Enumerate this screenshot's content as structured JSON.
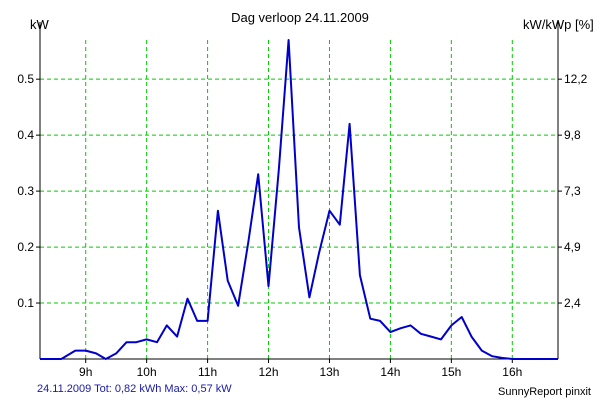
{
  "header": {
    "title": "Dag  verloop 24.11.2009",
    "ylabel_left": "kW",
    "ylabel_right": "kW/kWp [%]"
  },
  "footer": {
    "stats": "24.11.2009 Tot: 0,82 kWh Max: 0,57 kW",
    "credit": "SunnyReport pinxit"
  },
  "colors": {
    "line": "#0000cc",
    "grid": "#00cc00",
    "axis": "#000000",
    "stats_text": "#1a1aa8"
  },
  "chart_data": {
    "type": "line",
    "title": "Dag  verloop 24.11.2009",
    "ylabel": "kW",
    "y2label": "kW/kWp [%]",
    "xlim": [
      8.25,
      16.75
    ],
    "ylim": [
      0,
      0.57
    ],
    "x_ticks": [
      9,
      10,
      11,
      12,
      13,
      14,
      15,
      16
    ],
    "x_tick_labels": [
      "9h",
      "10h",
      "11h",
      "12h",
      "13h",
      "14h",
      "15h",
      "16h"
    ],
    "y_ticks": [
      0.1,
      0.2,
      0.3,
      0.4,
      0.5
    ],
    "y_tick_labels": [
      "0.1",
      "0.2",
      "0.3",
      "0.4",
      "0.5"
    ],
    "y2_ticks": [
      0.1,
      0.2,
      0.3,
      0.4,
      0.5
    ],
    "y2_tick_labels": [
      "2,4",
      "4,9",
      "7,3",
      "9,8",
      "12,2"
    ],
    "grid": true,
    "series": [
      {
        "x": [
          8.25,
          8.6,
          8.83,
          9.0,
          9.17,
          9.33,
          9.5,
          9.67,
          9.83,
          10.0,
          10.17,
          10.33,
          10.5,
          10.67,
          10.83,
          11.0,
          11.17,
          11.33,
          11.5,
          11.67,
          11.83,
          12.0,
          12.17,
          12.33,
          12.5,
          12.67,
          12.83,
          13.0,
          13.17,
          13.33,
          13.5,
          13.67,
          13.83,
          14.0,
          14.17,
          14.33,
          14.5,
          14.67,
          14.83,
          15.0,
          15.17,
          15.33,
          15.5,
          15.67,
          15.83,
          16.0,
          16.17,
          16.33,
          16.5,
          16.75
        ],
        "y": [
          0.0,
          0.0,
          0.015,
          0.015,
          0.01,
          0.0,
          0.01,
          0.03,
          0.03,
          0.035,
          0.03,
          0.06,
          0.04,
          0.108,
          0.068,
          0.068,
          0.265,
          0.14,
          0.095,
          0.21,
          0.33,
          0.13,
          0.34,
          0.57,
          0.235,
          0.11,
          0.19,
          0.265,
          0.24,
          0.42,
          0.15,
          0.072,
          0.068,
          0.048,
          0.055,
          0.06,
          0.045,
          0.04,
          0.035,
          0.06,
          0.075,
          0.04,
          0.015,
          0.005,
          0.002,
          0.0,
          0.0,
          0.0,
          0.0,
          0.0
        ]
      }
    ]
  }
}
